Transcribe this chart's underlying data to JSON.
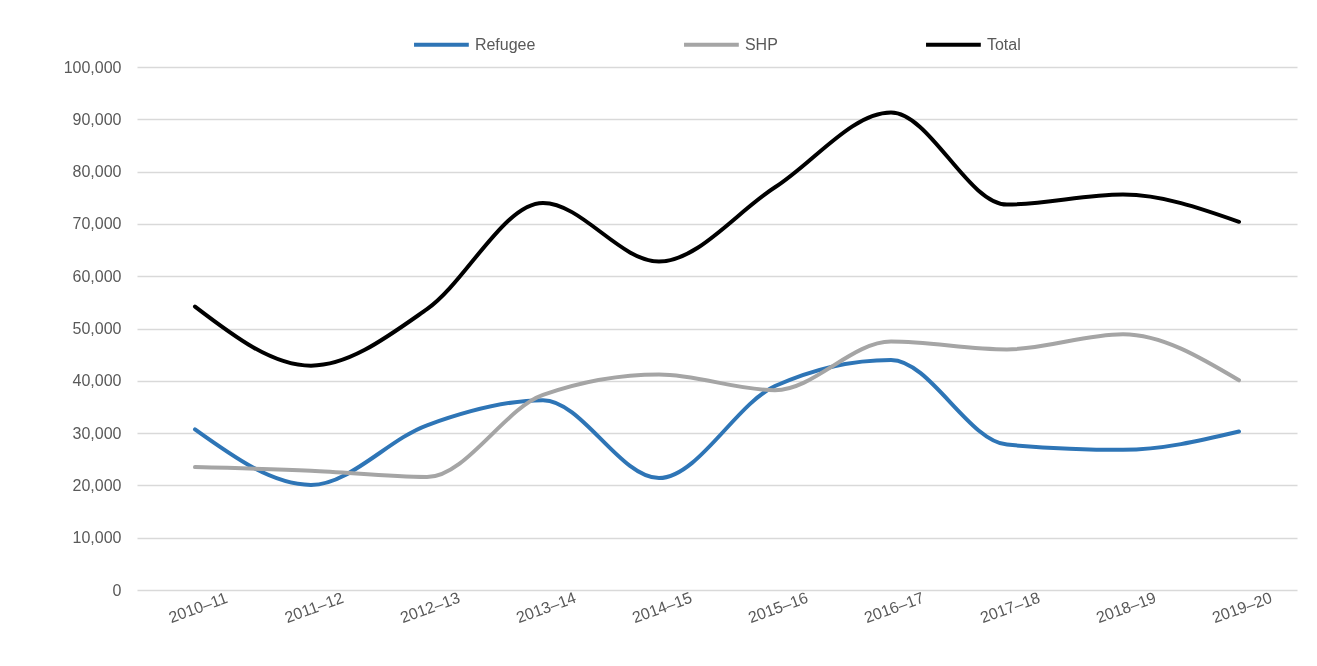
{
  "chart_data": {
    "type": "line",
    "categories": [
      "2010–11",
      "2011–12",
      "2012–13",
      "2013–14",
      "2014–15",
      "2015–16",
      "2016–17",
      "2017–18",
      "2018–19",
      "2019–20"
    ],
    "series": [
      {
        "name": "Refugee",
        "color": "#2e75b6",
        "values": [
          30700,
          20100,
          31500,
          36300,
          21400,
          39000,
          44000,
          27800,
          26800,
          30300
        ]
      },
      {
        "name": "SHP",
        "color": "#a5a5a5",
        "values": [
          23500,
          22800,
          21600,
          37300,
          41200,
          38200,
          47500,
          46000,
          48900,
          40100
        ]
      },
      {
        "name": "Total",
        "color": "#000000",
        "values": [
          54200,
          42900,
          53700,
          74000,
          62800,
          77000,
          91300,
          73700,
          75600,
          70400
        ]
      }
    ],
    "ylim": [
      0,
      100000
    ],
    "yticks": [
      {
        "value": 0,
        "label": "0"
      },
      {
        "value": 10000,
        "label": "10,000"
      },
      {
        "value": 20000,
        "label": "20,000"
      },
      {
        "value": 30000,
        "label": "30,000"
      },
      {
        "value": 40000,
        "label": "40,000"
      },
      {
        "value": 50000,
        "label": "50,000"
      },
      {
        "value": 60000,
        "label": "60,000"
      },
      {
        "value": 70000,
        "label": "70,000"
      },
      {
        "value": 80000,
        "label": "80,000"
      },
      {
        "value": 90000,
        "label": "90,000"
      },
      {
        "value": 100000,
        "label": "100,000"
      }
    ],
    "grid": "y",
    "legend": "top"
  }
}
